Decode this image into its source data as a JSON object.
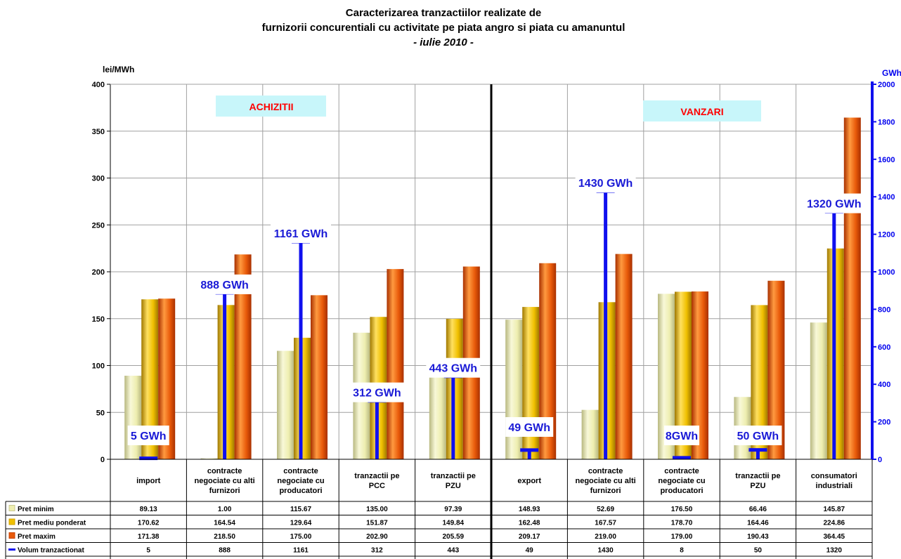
{
  "title": {
    "line1": "Caracterizarea tranzactiilor realizate de",
    "line2": "furnizorii concurentiali cu activitate pe piata angro si piata cu amanuntul",
    "line3": "- iulie 2010 -"
  },
  "sections": {
    "left": "ACHIZITII",
    "right": "VANZARI"
  },
  "colors": {
    "pret_minim": "#eeeeb0",
    "pret_mediu": "#f0c000",
    "pret_maxim": "#e85a0a",
    "volum": "#1010ee"
  },
  "chart_data": {
    "type": "bar",
    "title": "Caracterizarea tranzactiilor realizate de furnizorii concurentiali cu activitate pe piata angro si piata cu amanuntul - iulie 2010 -",
    "ylabel": "lei/MWh",
    "ylim": [
      0,
      400
    ],
    "yticks": [
      "0",
      "50",
      "100",
      "150",
      "200",
      "250",
      "300",
      "350",
      "400"
    ],
    "y2label": "GWh",
    "y2lim": [
      0,
      2000
    ],
    "y2ticks": [
      "0",
      "200",
      "400",
      "600",
      "800",
      "1000",
      "1200",
      "1400",
      "1600",
      "1800",
      "2000"
    ],
    "grid": true,
    "legend": "table-left",
    "categories": [
      [
        "import"
      ],
      [
        "contracte",
        "negociate cu alti",
        "furnizori"
      ],
      [
        "contracte",
        "negociate cu",
        "producatori"
      ],
      [
        "tranzactii pe",
        "PCC"
      ],
      [
        "tranzactii pe",
        "PZU"
      ],
      [
        "export"
      ],
      [
        "contracte",
        "negociate cu alti",
        "furnizori"
      ],
      [
        "contracte",
        "negociate cu",
        "producatori"
      ],
      [
        "tranzactii pe",
        "PZU"
      ],
      [
        "consumatori",
        "industriali"
      ]
    ],
    "series": [
      {
        "name": "Pret minim",
        "axis": "left",
        "values": [
          89.13,
          1.0,
          115.67,
          135.0,
          97.39,
          148.93,
          52.69,
          176.5,
          66.46,
          145.87
        ],
        "labels": [
          "89.13",
          "1.00",
          "115.67",
          "135.00",
          "97.39",
          "148.93",
          "52.69",
          "176.50",
          "66.46",
          "145.87"
        ]
      },
      {
        "name": "Pret mediu ponderat",
        "axis": "left",
        "values": [
          170.62,
          164.54,
          129.64,
          151.87,
          149.84,
          162.48,
          167.57,
          178.7,
          164.46,
          224.86
        ],
        "labels": [
          "170.62",
          "164.54",
          "129.64",
          "151.87",
          "149.84",
          "162.48",
          "167.57",
          "178.70",
          "164.46",
          "224.86"
        ]
      },
      {
        "name": "Pret maxim",
        "axis": "left",
        "values": [
          171.38,
          218.5,
          175.0,
          202.9,
          205.59,
          209.17,
          219.0,
          179.0,
          190.43,
          364.45
        ],
        "labels": [
          "171.38",
          "218.50",
          "175.00",
          "202.90",
          "205.59",
          "209.17",
          "219.00",
          "179.00",
          "190.43",
          "364.45"
        ]
      },
      {
        "name": "Volum tranzactionat",
        "axis": "right",
        "values": [
          5,
          888,
          1161,
          312,
          443,
          49,
          1430,
          8,
          50,
          1320
        ],
        "labels": [
          "5",
          "888",
          "1161",
          "312",
          "443",
          "49",
          "1430",
          "8",
          "50",
          "1320"
        ]
      }
    ],
    "volume_labels": [
      "5 GWh",
      "888 GWh",
      "1161 GWh",
      "312 GWh",
      "443 GWh",
      "49 GWh",
      "1430 GWh",
      "8GWh",
      "50 GWh",
      "1320 GWh"
    ]
  }
}
